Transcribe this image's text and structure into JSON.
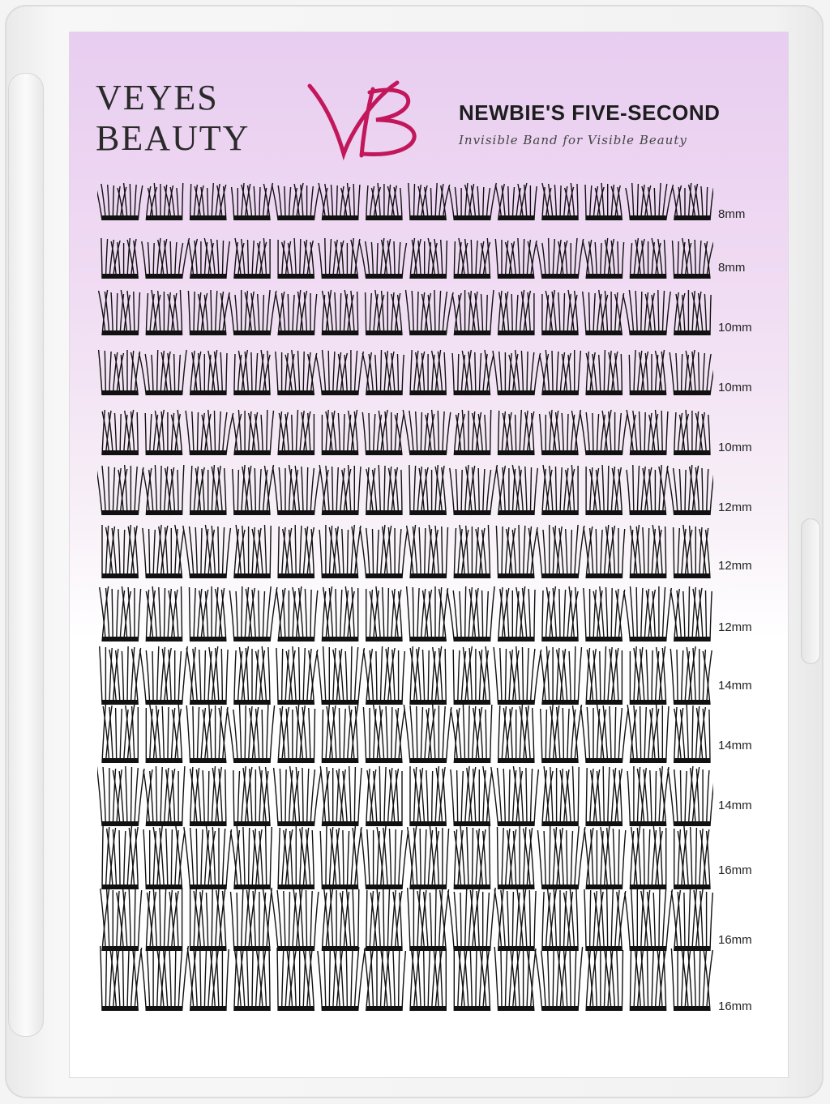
{
  "brand": {
    "line1": "VEYES",
    "line2": "BEAUTY",
    "monogram": "VB",
    "monogram_color": "#c2185b"
  },
  "product": {
    "headline": "NEWBIE'S FIVE-SECOND",
    "tagline": "Invisible Band for Visible Beauty"
  },
  "rows": [
    {
      "label": "8mm"
    },
    {
      "label": "8mm"
    },
    {
      "label": "10mm"
    },
    {
      "label": "10mm"
    },
    {
      "label": "10mm"
    },
    {
      "label": "12mm"
    },
    {
      "label": "12mm"
    },
    {
      "label": "12mm"
    },
    {
      "label": "14mm"
    },
    {
      "label": "14mm"
    },
    {
      "label": "14mm"
    },
    {
      "label": "16mm"
    },
    {
      "label": "16mm"
    },
    {
      "label": "16mm"
    }
  ],
  "clusters_per_row": 14,
  "colors": {
    "lash": "#111111",
    "card_pink": "#e8cdf0"
  }
}
